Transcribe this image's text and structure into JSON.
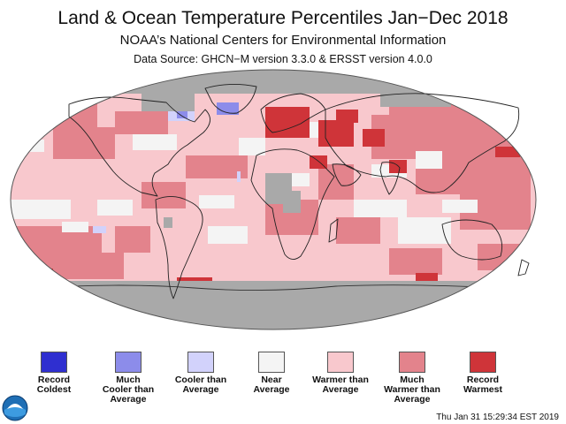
{
  "title": "Land & Ocean Temperature Percentiles Jan−Dec 2018",
  "subtitle": "NOAA’s National Centers for Environmental Information",
  "source": "Data Source: GHCN−M version 3.3.0 & ERSST version 4.0.0",
  "timestamp": "Thu Jan 31 15:29:34 EST 2019",
  "colors": {
    "record_coldest": "#2f2fd0",
    "much_cooler": "#8c8cea",
    "cooler": "#d2d2fb",
    "near": "#f4f4f4",
    "warmer": "#f8c8cd",
    "much_warmer": "#e3838c",
    "record_warmest": "#cf3439",
    "no_data": "#a9a9a9"
  },
  "legend": [
    {
      "label": "Record\nColdest",
      "color_key": "record_coldest"
    },
    {
      "label": "Much\nCooler than\nAverage",
      "color_key": "much_cooler"
    },
    {
      "label": "Cooler than\nAverage",
      "color_key": "cooler"
    },
    {
      "label": "Near\nAverage",
      "color_key": "near"
    },
    {
      "label": "Warmer than\nAverage",
      "color_key": "warmer"
    },
    {
      "label": "Much\nWarmer than\nAverage",
      "color_key": "much_warmer"
    },
    {
      "label": "Record\nWarmest",
      "color_key": "record_warmest"
    }
  ],
  "logo": {
    "icon": "noaa-logo-icon"
  }
}
